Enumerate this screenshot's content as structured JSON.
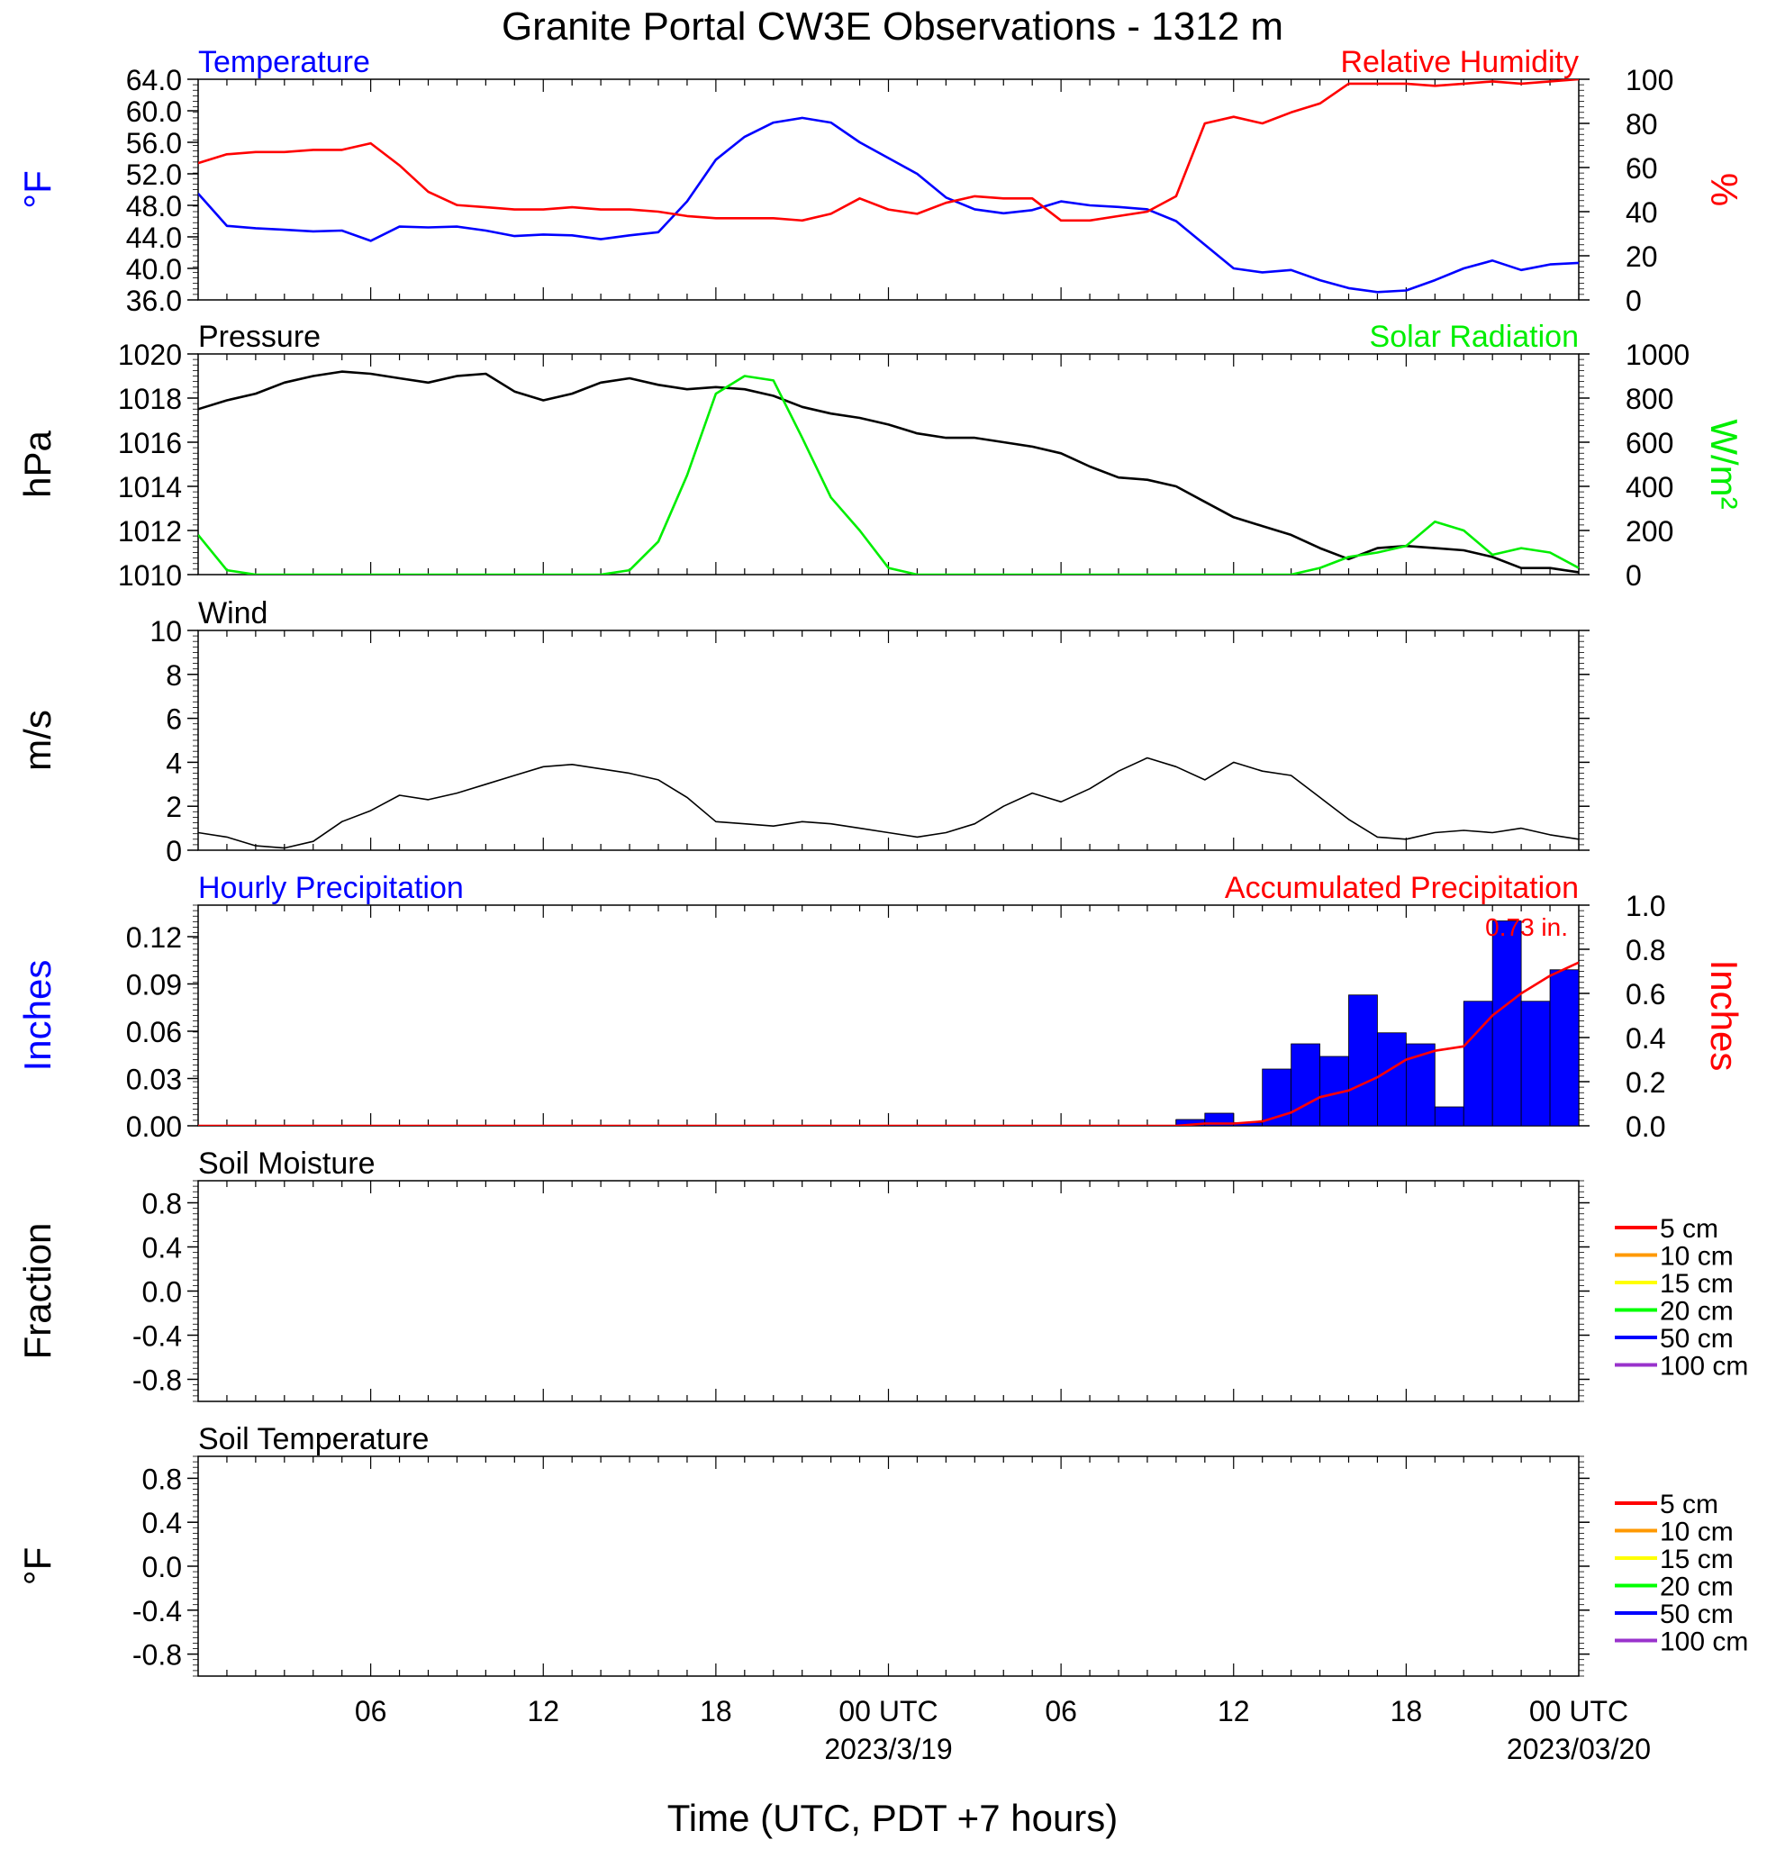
{
  "title": "Granite Portal CW3E Observations - 1312 m",
  "xaxis": {
    "label": "Time (UTC, PDT +7 hours)",
    "ticks": [
      "06",
      "12",
      "18",
      "00 UTC",
      "06",
      "12",
      "18",
      "00 UTC"
    ],
    "dates": [
      "2023/3/19",
      "2023/03/20"
    ]
  },
  "chart_data": [
    {
      "type": "line",
      "title_left": "Temperature",
      "title_right": "Relative Humidity",
      "ylabel_left": "°F",
      "ylabel_right": "%",
      "ylim_left": [
        36,
        64
      ],
      "ylim_right": [
        0,
        100
      ],
      "yticks_left": [
        "64.0",
        "60.0",
        "56.0",
        "52.0",
        "48.0",
        "44.0",
        "40.0",
        "36.0"
      ],
      "yticks_right": [
        "100",
        "80",
        "60",
        "40",
        "20",
        "0"
      ],
      "x_hours": [
        0,
        1,
        2,
        3,
        4,
        5,
        6,
        7,
        8,
        9,
        10,
        11,
        12,
        13,
        14,
        15,
        16,
        17,
        18,
        19,
        20,
        21,
        22,
        23,
        24,
        25,
        26,
        27,
        28,
        29,
        30,
        31,
        32,
        33,
        34,
        35,
        36,
        37,
        38,
        39,
        40,
        41,
        42,
        43,
        44,
        45,
        46,
        47,
        48
      ],
      "series": [
        {
          "name": "Temperature",
          "color": "#0000ff",
          "axis": "left",
          "values": [
            49.5,
            45.4,
            45.1,
            44.9,
            44.7,
            44.8,
            43.5,
            45.3,
            45.2,
            45.3,
            44.8,
            44.1,
            44.3,
            44.2,
            43.7,
            44.2,
            44.6,
            48.5,
            53.8,
            56.7,
            58.5,
            59.1,
            58.5,
            56.0,
            54.0,
            52.0,
            49.0,
            47.5,
            47.0,
            47.4,
            48.5,
            48.0,
            47.8,
            47.5,
            46.0,
            43.0,
            40.0,
            39.5,
            39.8,
            38.5,
            37.5,
            37.0,
            37.2,
            38.5,
            40.0,
            41.0,
            39.8,
            40.5,
            40.7
          ]
        },
        {
          "name": "Relative Humidity",
          "color": "#ff0000",
          "axis": "right",
          "values": [
            62,
            66,
            67,
            67,
            68,
            68,
            71,
            61,
            49,
            43,
            42,
            41,
            41,
            42,
            41,
            41,
            40,
            38,
            37,
            37,
            37,
            36,
            39,
            46,
            41,
            39,
            44,
            47,
            46,
            46,
            36,
            36,
            38,
            40,
            47,
            80,
            83,
            80,
            85,
            89,
            98,
            98,
            98,
            97,
            98,
            99,
            98,
            99,
            100
          ]
        }
      ]
    },
    {
      "type": "line",
      "title_left": "Pressure",
      "title_right": "Solar Radiation",
      "ylabel_left": "hPa",
      "ylabel_right": "W/m²",
      "ylim_left": [
        1010,
        1020
      ],
      "ylim_right": [
        0,
        1000
      ],
      "yticks_left": [
        "1020",
        "1018",
        "1016",
        "1014",
        "1012",
        "1010"
      ],
      "yticks_right": [
        "1000",
        "800",
        "600",
        "400",
        "200",
        "0"
      ],
      "x_hours": [
        0,
        1,
        2,
        3,
        4,
        5,
        6,
        7,
        8,
        9,
        10,
        11,
        12,
        13,
        14,
        15,
        16,
        17,
        18,
        19,
        20,
        21,
        22,
        23,
        24,
        25,
        26,
        27,
        28,
        29,
        30,
        31,
        32,
        33,
        34,
        35,
        36,
        37,
        38,
        39,
        40,
        41,
        42,
        43,
        44,
        45,
        46,
        47,
        48
      ],
      "series": [
        {
          "name": "Pressure",
          "color": "#000000",
          "axis": "left",
          "values": [
            1017.5,
            1017.9,
            1018.2,
            1018.7,
            1019.0,
            1019.2,
            1019.1,
            1018.9,
            1018.7,
            1019.0,
            1019.1,
            1018.3,
            1017.9,
            1018.2,
            1018.7,
            1018.9,
            1018.6,
            1018.4,
            1018.5,
            1018.4,
            1018.1,
            1017.6,
            1017.3,
            1017.1,
            1016.8,
            1016.4,
            1016.2,
            1016.2,
            1016.0,
            1015.8,
            1015.5,
            1014.9,
            1014.4,
            1014.3,
            1014.0,
            1013.3,
            1012.6,
            1012.2,
            1011.8,
            1011.2,
            1010.7,
            1011.2,
            1011.3,
            1011.2,
            1011.1,
            1010.8,
            1010.3,
            1010.3,
            1010.1
          ]
        },
        {
          "name": "Solar Radiation",
          "color": "#00ee00",
          "axis": "right",
          "values": [
            180,
            20,
            0,
            0,
            0,
            0,
            0,
            0,
            0,
            0,
            0,
            0,
            0,
            0,
            0,
            20,
            150,
            450,
            820,
            900,
            880,
            620,
            350,
            200,
            30,
            0,
            0,
            0,
            0,
            0,
            0,
            0,
            0,
            0,
            0,
            0,
            0,
            0,
            0,
            30,
            80,
            100,
            130,
            240,
            200,
            90,
            120,
            100,
            30
          ]
        }
      ]
    },
    {
      "type": "line",
      "title_left": "Wind",
      "ylabel_left": "m/s",
      "ylim_left": [
        0,
        10
      ],
      "yticks_left": [
        "10",
        "8",
        "6",
        "4",
        "2",
        "0"
      ],
      "x_hours": [
        0,
        1,
        2,
        3,
        4,
        5,
        6,
        7,
        8,
        9,
        10,
        11,
        12,
        13,
        14,
        15,
        16,
        17,
        18,
        19,
        20,
        21,
        22,
        23,
        24,
        25,
        26,
        27,
        28,
        29,
        30,
        31,
        32,
        33,
        34,
        35,
        36,
        37,
        38,
        39,
        40,
        41,
        42,
        43,
        44,
        45,
        46,
        47,
        48
      ],
      "series": [
        {
          "name": "Wind speed",
          "color": "#000000",
          "axis": "left",
          "values": [
            0.8,
            0.6,
            0.2,
            0.1,
            0.4,
            1.3,
            1.8,
            2.5,
            2.3,
            2.6,
            3.0,
            3.4,
            3.8,
            3.9,
            3.7,
            3.5,
            3.2,
            2.4,
            1.3,
            1.2,
            1.1,
            1.3,
            1.2,
            1.0,
            0.8,
            0.6,
            0.8,
            1.2,
            2.0,
            2.6,
            2.2,
            2.8,
            3.6,
            4.2,
            3.8,
            3.2,
            4.0,
            3.6,
            3.4,
            2.4,
            1.4,
            0.6,
            0.5,
            0.8,
            0.9,
            0.8,
            1.0,
            0.7,
            0.5
          ]
        }
      ]
    },
    {
      "type": "bar",
      "title_left": "Hourly Precipitation",
      "title_right": "Accumulated Precipitation",
      "annotation": "0.73 in.",
      "ylabel_left": "Inches",
      "ylabel_right": "Inches",
      "ylim_left": [
        0,
        0.14
      ],
      "ylim_right": [
        0,
        1.0
      ],
      "yticks_left": [
        "0.12",
        "0.09",
        "0.06",
        "0.03",
        "0.00"
      ],
      "yticks_right": [
        "1.0",
        "0.8",
        "0.6",
        "0.4",
        "0.2",
        "0.0"
      ],
      "bar_hours": [
        34,
        35,
        36,
        37,
        38,
        39,
        40,
        41,
        42,
        43,
        44,
        45,
        46,
        47
      ],
      "bars": [
        0.004,
        0.008,
        0.002,
        0.036,
        0.052,
        0.044,
        0.083,
        0.059,
        0.052,
        0.012,
        0.079,
        0.13,
        0.079,
        0.099
      ],
      "x_hours": [
        0,
        34,
        35,
        36,
        37,
        38,
        39,
        40,
        41,
        42,
        43,
        44,
        45,
        46,
        47,
        48
      ],
      "series": [
        {
          "name": "Accumulated Precipitation",
          "color": "#ff0000",
          "axis": "right",
          "values": [
            0,
            0,
            0.01,
            0.01,
            0.02,
            0.06,
            0.13,
            0.16,
            0.22,
            0.3,
            0.34,
            0.36,
            0.5,
            0.6,
            0.68,
            0.74
          ]
        }
      ]
    },
    {
      "type": "line",
      "title_left": "Soil Moisture",
      "ylabel_left": "Fraction",
      "ylim_left": [
        -1,
        1
      ],
      "yticks_left": [
        "0.8",
        "0.4",
        "0.0",
        "-0.4",
        "-0.8"
      ],
      "legend": [
        {
          "label": "5 cm",
          "color": "#ff0000"
        },
        {
          "label": "10 cm",
          "color": "#ff9900"
        },
        {
          "label": "15 cm",
          "color": "#ffff00"
        },
        {
          "label": "20 cm",
          "color": "#00ff00"
        },
        {
          "label": "50 cm",
          "color": "#0000ff"
        },
        {
          "label": "100 cm",
          "color": "#9933cc"
        }
      ],
      "series": []
    },
    {
      "type": "line",
      "title_left": "Soil Temperature",
      "ylabel_left": "°F",
      "ylim_left": [
        -1,
        1
      ],
      "yticks_left": [
        "0.8",
        "0.4",
        "0.0",
        "-0.4",
        "-0.8"
      ],
      "legend": [
        {
          "label": "5 cm",
          "color": "#ff0000"
        },
        {
          "label": "10 cm",
          "color": "#ff9900"
        },
        {
          "label": "15 cm",
          "color": "#ffff00"
        },
        {
          "label": "20 cm",
          "color": "#00ff00"
        },
        {
          "label": "50 cm",
          "color": "#0000ff"
        },
        {
          "label": "100 cm",
          "color": "#9933cc"
        }
      ],
      "series": []
    }
  ]
}
